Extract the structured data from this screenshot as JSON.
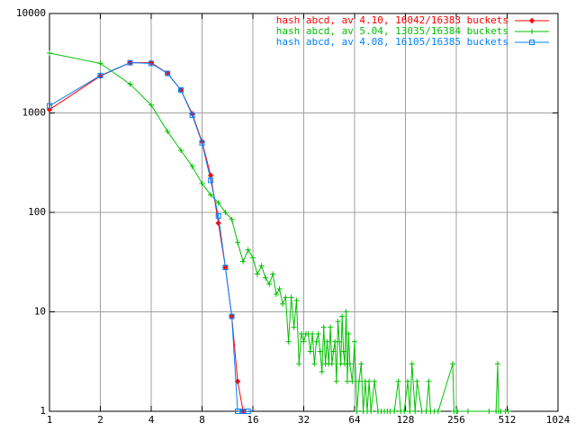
{
  "chart_data": {
    "type": "line",
    "xlog": 2,
    "ylog": 10,
    "grid": true,
    "legend": "top-right",
    "xlim": [
      1,
      1024
    ],
    "ylim": [
      1,
      10000
    ],
    "xticks": [
      1,
      2,
      4,
      8,
      16,
      32,
      64,
      128,
      256,
      512,
      1024
    ],
    "yticks": [
      1,
      10,
      100,
      1000,
      10000
    ],
    "series": [
      {
        "name": "hash abcd, av 4.10, 16042/16383 buckets",
        "color": "#ff0000",
        "marker": "diamond",
        "x": [
          1,
          2,
          3,
          4,
          5,
          6,
          7,
          8,
          9,
          10,
          11,
          12,
          13,
          14
        ],
        "values": [
          1080,
          2350,
          3200,
          3200,
          2500,
          1700,
          980,
          515,
          235,
          78,
          28,
          9,
          2,
          1
        ]
      },
      {
        "name": "hash abcd, av 5.04, 13035/16384 buckets",
        "color": "#00c000",
        "marker": "plus",
        "x": [
          1,
          2,
          3,
          4,
          5,
          6,
          7,
          8,
          9,
          10,
          11,
          12,
          13,
          14,
          15,
          16,
          17,
          18,
          19,
          20,
          21,
          22,
          23,
          24,
          25,
          26,
          27,
          28,
          29,
          30,
          31,
          32,
          33,
          34,
          35,
          36,
          37,
          38,
          39,
          40,
          41,
          42,
          43,
          44,
          45,
          46,
          47,
          48,
          49,
          50,
          51,
          52,
          53,
          54,
          55,
          56,
          57,
          58,
          59,
          60,
          62,
          64,
          66,
          68,
          70,
          72,
          74,
          76,
          78,
          80,
          84,
          88,
          92,
          96,
          100,
          104,
          110,
          116,
          120,
          126,
          132,
          136,
          140,
          146,
          150,
          160,
          170,
          176,
          180,
          190,
          200,
          244,
          248,
          256,
          260,
          300,
          400,
          440,
          450,
          456,
          470,
          500,
          520
        ],
        "values": [
          4000,
          3150,
          1950,
          1200,
          650,
          420,
          290,
          195,
          150,
          125,
          100,
          85,
          50,
          32,
          42,
          35,
          24,
          29,
          22,
          19,
          24,
          15,
          17,
          12,
          14,
          5,
          14,
          7,
          13,
          3,
          6,
          5,
          6,
          6,
          4,
          6,
          3,
          5,
          6,
          4,
          2.5,
          7,
          3,
          5,
          3,
          7,
          3,
          4,
          5,
          2,
          8,
          5,
          3,
          9,
          4,
          3,
          10,
          2,
          6,
          3,
          2,
          5,
          1,
          2,
          3,
          1,
          2,
          1,
          2,
          1,
          2,
          1,
          1,
          1,
          1,
          1,
          1,
          2,
          1,
          1,
          2,
          1,
          3,
          1,
          2,
          1,
          1,
          2,
          1,
          1,
          1,
          3,
          1,
          1,
          1,
          1,
          1,
          1,
          3,
          1,
          1,
          1,
          1
        ]
      },
      {
        "name": "hash abcd, av 4.08, 16105/16385 buckets",
        "color": "#0080ff",
        "marker": "square",
        "x": [
          1,
          2,
          3,
          4,
          5,
          6,
          7,
          8,
          9,
          10,
          11,
          12,
          13,
          14,
          15
        ],
        "values": [
          1180,
          2380,
          3200,
          3150,
          2500,
          1700,
          950,
          500,
          210,
          92,
          28,
          9,
          1,
          1,
          1
        ]
      }
    ]
  }
}
